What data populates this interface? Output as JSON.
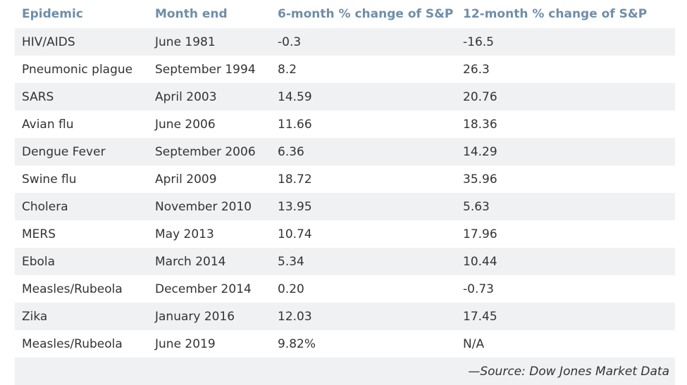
{
  "chart_data": {
    "type": "table",
    "columns": [
      "Epidemic",
      "Month end",
      "6-month % change of S&P",
      "12-month % change of S&P"
    ],
    "rows": [
      [
        "HIV/AIDS",
        "June 1981",
        "-0.3",
        "-16.5"
      ],
      [
        "Pneumonic plague",
        "September 1994",
        "8.2",
        "26.3"
      ],
      [
        "SARS",
        "April 2003",
        "14.59",
        "20.76"
      ],
      [
        "Avian flu",
        "June 2006",
        "11.66",
        "18.36"
      ],
      [
        "Dengue Fever",
        "September 2006",
        "6.36",
        "14.29"
      ],
      [
        "Swine flu",
        "April 2009",
        "18.72",
        "35.96"
      ],
      [
        "Cholera",
        "November 2010",
        "13.95",
        "5.63"
      ],
      [
        "MERS",
        "May 2013",
        "10.74",
        "17.96"
      ],
      [
        "Ebola",
        "March 2014",
        "5.34",
        "10.44"
      ],
      [
        "Measles/Rubeola",
        "December 2014",
        "0.20",
        "-0.73"
      ],
      [
        "Zika",
        "January 2016",
        "12.03",
        "17.45"
      ],
      [
        "Measles/Rubeola",
        "June 2019",
        "9.82%",
        "N/A"
      ]
    ],
    "source": "—Source: Dow Jones Market Data"
  },
  "colors": {
    "header_text": "#6f8ea8",
    "body_text": "#333333",
    "stripe": "#f0f1f2"
  }
}
